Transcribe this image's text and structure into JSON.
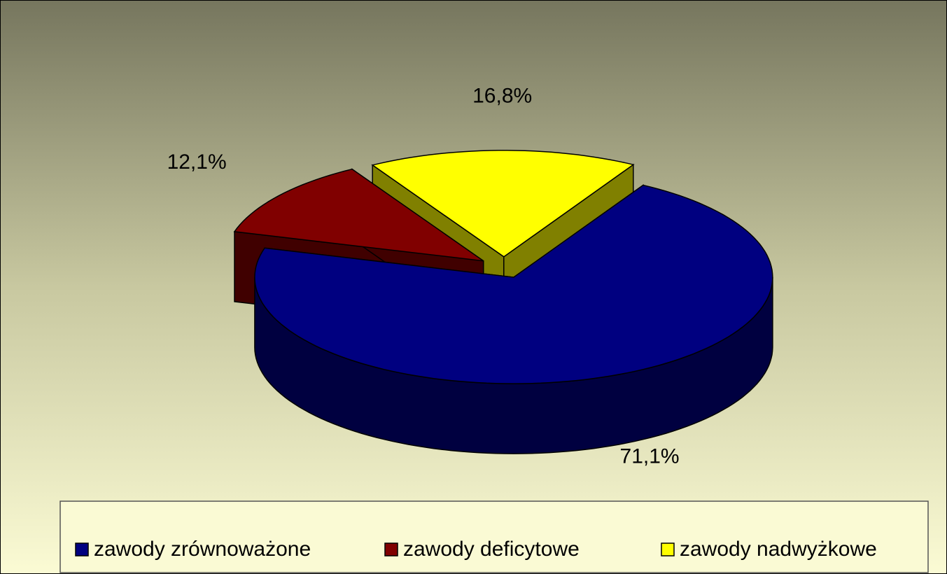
{
  "chart_data": {
    "type": "pie3d",
    "categories": [
      "zawody zrównoważone",
      "zawody deficytowe",
      "zawody nadwyżkowe"
    ],
    "values": [
      71.1,
      12.1,
      16.8
    ],
    "value_labels": [
      "71,1%",
      "12,1%",
      "16,8%"
    ],
    "colors": [
      "#000080",
      "#800000",
      "#ffff00"
    ],
    "legend": "bottom"
  }
}
